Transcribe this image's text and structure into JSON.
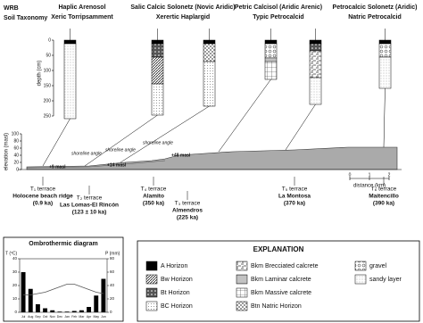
{
  "header": {
    "wrb": "WRB",
    "soil_taxonomy": "Soil Taxonomy"
  },
  "soils": [
    {
      "wrb": "Haplic Arenosol",
      "taxonomy": "Xeric Torripsamment"
    },
    {
      "wrb": "Salic Calcic Solonetz (Novic Aridic)",
      "taxonomy": "Xerertic Haplargid"
    },
    {
      "wrb": "Petric Calcisol (Aridic Arenic)",
      "taxonomy": "Typic Petrocalcid"
    },
    {
      "wrb": "Petrocalcic Solonetz (Aridic)",
      "taxonomy": "Natric Petrocalcid"
    }
  ],
  "depth_axis": {
    "label": "depth (cm)",
    "ticks": [
      0,
      50,
      100,
      150,
      200,
      250
    ]
  },
  "profile": {
    "elevation_label": "elevation (masl)",
    "elevation_ticks": [
      0,
      20,
      40,
      60,
      80,
      100
    ],
    "distance_label": "distance (km)",
    "distance_ticks": [
      0,
      1,
      2
    ],
    "shoreline_labels": [
      "shoreline angle",
      "shoreline angle",
      "shoreline angle"
    ],
    "heights": [
      "+9 masl",
      "+14 masl",
      "+48 masl"
    ]
  },
  "terraces": [
    {
      "name": "T₁ terrace",
      "place": "Holocene beach ridge",
      "age": "(0.9 ka)"
    },
    {
      "name": "T₂ terrace",
      "place": "Las Lomas-El Rincón",
      "age": "(123 ± 10 ka)"
    },
    {
      "name": "T₄ terrace",
      "place": "Alamito",
      "age": "(350 ka)"
    },
    {
      "name": "T₃ terrace",
      "place": "Almendros",
      "age": "(225 ka)"
    },
    {
      "name": "T₅ terrace",
      "place": "La Montosa",
      "age": "(370 ka)"
    },
    {
      "name": "T₆ terrace",
      "place": "Maitencillo",
      "age": "(390 ka)"
    }
  ],
  "ombrothermic": {
    "title": "Ombrothermic diagram",
    "t_label": "T (ºC)",
    "p_label": "P (mm)",
    "months": [
      "Jul",
      "Aug",
      "Sep",
      "Oct",
      "Nov",
      "Dec",
      "Jan",
      "Feb",
      "Mar",
      "Apr",
      "May",
      "Jun"
    ],
    "precipitation": [
      60,
      35,
      12,
      6,
      3,
      1,
      1,
      2,
      3,
      8,
      25,
      50
    ],
    "temperature": [
      13,
      13,
      14,
      15,
      17,
      19,
      21,
      21,
      19,
      17,
      15,
      14
    ],
    "t_ticks": [
      0,
      10,
      20,
      30,
      40
    ],
    "p_ticks": [
      0,
      20,
      40,
      60,
      80
    ]
  },
  "explanation": {
    "title": "EXPLANATION",
    "items": [
      "A  Horizon",
      "Bw  Horizon",
      "Bt  Horizon",
      "BC  Horizon",
      "Bkm Brecciated calcrete",
      "Bkm Laminar calcrete",
      "Bkm Massive calcrete",
      "Btn Natric  Horizon",
      "gravel",
      "sandy layer"
    ]
  }
}
